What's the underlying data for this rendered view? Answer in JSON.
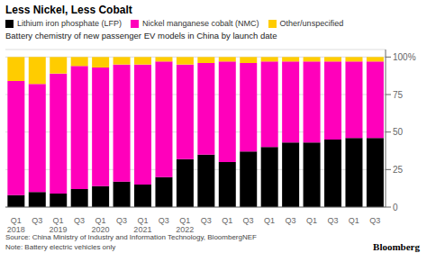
{
  "chart_data": {
    "type": "bar",
    "stacked": true,
    "title": "Less Nickel, Less Cobalt",
    "subtitle": "Battery chemistry of new passenger EV models in China by launch date",
    "annotations": [
      "Source: China Ministry of Industry and Information Technology, BloombergNEF",
      "Note: Battery electric vehicles only",
      "Bloomberg"
    ],
    "categories": [
      "Q1\n2018",
      "Q3",
      "Q1\n2019",
      "Q3",
      "Q1\n2020",
      "Q3",
      "Q1\n2021",
      "Q3",
      "Q1\n2022",
      "Q3",
      "Q1",
      "Q3",
      "Q1",
      "Q3",
      "Q1",
      "Q3",
      "Q1",
      "Q3"
    ],
    "series": [
      {
        "name": "Lithium iron phosphate (LFP)",
        "color": "#000000",
        "values": [
          8,
          10,
          9,
          12,
          14,
          17,
          15,
          20,
          32,
          35,
          30,
          37,
          40,
          43,
          43,
          45,
          46,
          46
        ]
      },
      {
        "name": "Nickel manganese cobalt (NMC)",
        "color": "#ff00bb",
        "values": [
          76,
          72,
          80,
          82,
          79,
          78,
          80,
          77,
          63,
          61,
          67,
          59,
          57,
          54,
          54,
          52,
          51,
          51
        ]
      },
      {
        "name": "Other/unspecified",
        "color": "#ffcc00",
        "values": [
          16,
          18,
          11,
          6,
          7,
          5,
          5,
          3,
          5,
          4,
          3,
          4,
          3,
          3,
          3,
          3,
          3,
          3
        ]
      }
    ],
    "ylim": [
      0,
      105
    ],
    "yticks": [
      0,
      25,
      50,
      75,
      {
        "value": 100,
        "label": "100%"
      }
    ],
    "grid": true,
    "legend": "top"
  }
}
